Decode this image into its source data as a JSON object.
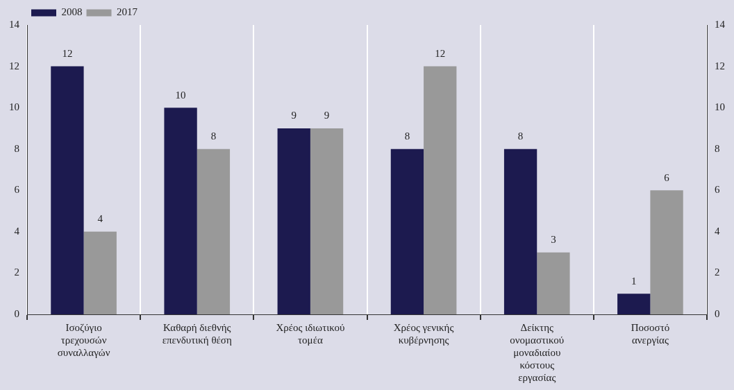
{
  "chart_data": {
    "type": "bar",
    "categories": [
      "Ισοζύγιο τρεχουσών συναλλαγών",
      "Καθαρή διεθνής επενδυτική θέση",
      "Χρέος ιδιωτικού τομέα",
      "Χρέος γενικής κυβέρνησης",
      "Δείκτης ονομαστικού μοναδιαίου κόστους εργασίας",
      "Ποσοστό ανεργίας"
    ],
    "series": [
      {
        "name": "2008",
        "color": "#1c1a4f",
        "values": [
          12,
          10,
          9,
          8,
          8,
          1
        ]
      },
      {
        "name": "2017",
        "color": "#999999",
        "values": [
          4,
          8,
          9,
          12,
          3,
          6
        ]
      }
    ],
    "ylim": [
      0,
      14
    ],
    "yticks": [
      0,
      2,
      4,
      6,
      8,
      10,
      12,
      14
    ],
    "y2lim": [
      0,
      14
    ],
    "y2ticks": [
      0,
      2,
      4,
      6,
      8,
      10,
      12,
      14
    ],
    "grid": "x",
    "legend": "top left",
    "data_labels": true
  }
}
